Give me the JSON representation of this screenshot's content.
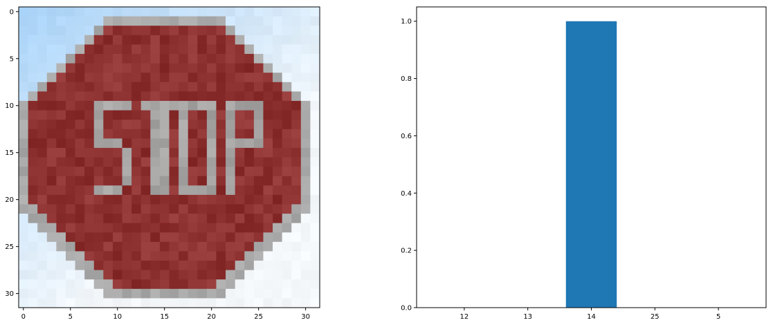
{
  "figure": {
    "background": "#ffffff"
  },
  "image_panel": {
    "type": "image",
    "content": "pixelated 32x32 photo of a red octagonal STOP sign against a light blue and white sky",
    "sign_text": "STOP",
    "grid_size": [
      32,
      32
    ],
    "x_ticks": [
      "0",
      "5",
      "10",
      "15",
      "20",
      "25",
      "30"
    ],
    "y_ticks": [
      "0",
      "5",
      "10",
      "15",
      "20",
      "25",
      "30"
    ],
    "colors": {
      "sign_red": "#8e3131",
      "sign_border": "#a9a9a9",
      "letter_gray": "#a7a4a4",
      "sky_blue": "#a9d3f8",
      "sky_white": "#f4f8fb"
    }
  },
  "chart_data": {
    "type": "bar",
    "categories": [
      "12",
      "13",
      "14",
      "25",
      "5"
    ],
    "values": [
      0.0,
      0.0,
      1.0,
      0.0,
      0.0
    ],
    "title": "",
    "xlabel": "",
    "ylabel": "",
    "ylim": [
      0,
      1.05
    ],
    "yticks": [
      0.0,
      0.2,
      0.4,
      0.6,
      0.8,
      1.0
    ],
    "ytick_labels": [
      "0.0",
      "0.2",
      "0.4",
      "0.6",
      "0.8",
      "1.0"
    ],
    "bar_color": "#1f77b4",
    "grid": false,
    "legend": "none"
  }
}
